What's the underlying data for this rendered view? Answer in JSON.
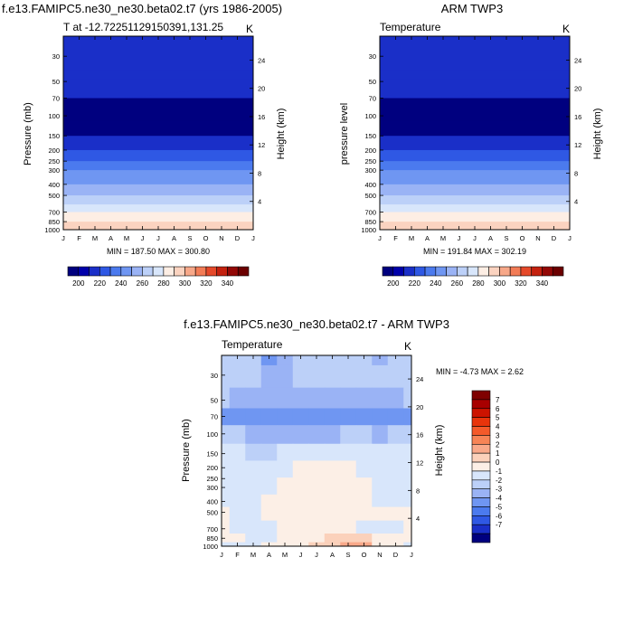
{
  "chart_data": [
    {
      "type": "heatmap",
      "title": "f.e13.FAMIPC5.ne30_ne30.beta02.t7 (yrs 1986-2005)",
      "subtitle_left": "T at -12.72251129150391,131.25",
      "subtitle_right": "K",
      "ylabel": "Pressure (mb)",
      "ylabel_right": "Height (km)",
      "months": [
        "J",
        "F",
        "M",
        "A",
        "M",
        "J",
        "J",
        "A",
        "S",
        "O",
        "N",
        "D",
        "J"
      ],
      "pressure_ticks": [
        30,
        50,
        70,
        100,
        150,
        200,
        250,
        300,
        400,
        500,
        700,
        850,
        1000
      ],
      "height_ticks": [
        24,
        20,
        16,
        12,
        8,
        4
      ],
      "ylim": [
        1000,
        20
      ],
      "stats": "MIN = 187.50 MAX = 300.80",
      "min": 187.5,
      "max": 300.8,
      "bands": [
        {
          "p": 20,
          "T": 212
        },
        {
          "p": 40,
          "T": 212
        },
        {
          "p": 70,
          "T": 196
        },
        {
          "p": 110,
          "T": 192
        },
        {
          "p": 150,
          "T": 210
        },
        {
          "p": 200,
          "T": 222
        },
        {
          "p": 250,
          "T": 232
        },
        {
          "p": 300,
          "T": 242
        },
        {
          "p": 400,
          "T": 256
        },
        {
          "p": 500,
          "T": 268
        },
        {
          "p": 600,
          "T": 275
        },
        {
          "p": 700,
          "T": 283
        },
        {
          "p": 850,
          "T": 292
        },
        {
          "p": 1000,
          "T": 298
        }
      ]
    },
    {
      "type": "heatmap",
      "title": "ARM TWP3",
      "subtitle_left": "Temperature",
      "subtitle_right": "K",
      "ylabel": "pressure level",
      "ylabel_right": "Height (km)",
      "months": [
        "J",
        "F",
        "M",
        "A",
        "M",
        "J",
        "J",
        "A",
        "S",
        "O",
        "N",
        "D",
        "J"
      ],
      "pressure_ticks": [
        30,
        50,
        70,
        100,
        150,
        200,
        250,
        300,
        400,
        500,
        700,
        850,
        1000
      ],
      "height_ticks": [
        24,
        20,
        16,
        12,
        8,
        4
      ],
      "ylim": [
        1000,
        20
      ],
      "stats": "MIN = 191.84 MAX = 302.19",
      "min": 191.84,
      "max": 302.19,
      "bands": [
        {
          "p": 20,
          "T": 214
        },
        {
          "p": 40,
          "T": 212
        },
        {
          "p": 70,
          "T": 199
        },
        {
          "p": 110,
          "T": 194
        },
        {
          "p": 150,
          "T": 210
        },
        {
          "p": 200,
          "T": 222
        },
        {
          "p": 250,
          "T": 233
        },
        {
          "p": 300,
          "T": 243
        },
        {
          "p": 400,
          "T": 257
        },
        {
          "p": 500,
          "T": 269
        },
        {
          "p": 600,
          "T": 276
        },
        {
          "p": 700,
          "T": 284
        },
        {
          "p": 850,
          "T": 293
        },
        {
          "p": 1000,
          "T": 300
        }
      ]
    },
    {
      "type": "heatmap",
      "title": "f.e13.FAMIPC5.ne30_ne30.beta02.t7 - ARM TWP3",
      "subtitle_left": "Temperature",
      "subtitle_right": "K",
      "ylabel": "Pressure (mb)",
      "ylabel_right": "Height (km)",
      "months": [
        "J",
        "F",
        "M",
        "A",
        "M",
        "J",
        "J",
        "A",
        "S",
        "O",
        "N",
        "D",
        "J"
      ],
      "pressure_ticks": [
        30,
        50,
        70,
        100,
        150,
        200,
        250,
        300,
        400,
        500,
        700,
        850,
        1000
      ],
      "height_ticks": [
        24,
        20,
        16,
        12,
        8,
        4
      ],
      "ylim": [
        1000,
        20
      ],
      "stats": "MIN =  -4.73 MAX =   2.62",
      "min": -4.73,
      "max": 2.62,
      "grid_pressures": [
        20,
        30,
        50,
        70,
        100,
        150,
        200,
        300,
        400,
        500,
        700,
        850,
        1000
      ],
      "grid_values": [
        [
          -2,
          -2,
          -2.5,
          -4,
          -3,
          -2.5,
          -2,
          -2,
          -2,
          -2,
          -3,
          -2,
          -2
        ],
        [
          -2,
          -2,
          -2.5,
          -3.5,
          -3,
          -2.5,
          -2,
          -2,
          -2,
          -2,
          -2.5,
          -2,
          -2
        ],
        [
          -2.5,
          -3,
          -3,
          -3.5,
          -3,
          -3,
          -3,
          -3,
          -3,
          -3,
          -3,
          -3,
          -2.5
        ],
        [
          -4.5,
          -4,
          -4,
          -4,
          -4.5,
          -4,
          -4,
          -4,
          -4,
          -4,
          -4,
          -4.5,
          -4.5
        ],
        [
          -2.5,
          -2.5,
          -3,
          -3,
          -3,
          -3,
          -3,
          -3,
          -2.5,
          -2.5,
          -3,
          -2.5,
          -2.5
        ],
        [
          -1.5,
          -1.5,
          -2,
          -2,
          -1.5,
          -1,
          -1,
          -1,
          -1,
          -1.5,
          -1.5,
          -1.5,
          -1.5
        ],
        [
          -1.5,
          -1.5,
          -1.5,
          -1.5,
          -1,
          -0.5,
          -0.5,
          -0.5,
          -0.5,
          -1,
          -1.5,
          -1.5,
          -1.5
        ],
        [
          -1,
          -1.5,
          -1.5,
          -1,
          -0.5,
          -0.5,
          -0.5,
          -0.5,
          -0.5,
          -0.5,
          -1,
          -1,
          -1
        ],
        [
          -1,
          -1,
          -1,
          -0.5,
          -0.5,
          -0.5,
          -0.5,
          -0.5,
          -0.5,
          -0.5,
          -1,
          -1,
          -1
        ],
        [
          -0.5,
          -1,
          -1,
          -0.5,
          -0.5,
          -0.5,
          -0.5,
          -0.5,
          -0.5,
          -0.5,
          -0.5,
          -0.5,
          -0.5
        ],
        [
          -0.5,
          -1,
          -1.5,
          -1,
          -0.5,
          -0.5,
          -0.5,
          -0.5,
          -0.5,
          -1,
          -1,
          -1,
          -0.5
        ],
        [
          -0.5,
          -0.5,
          -1,
          -1,
          -0.5,
          -0.5,
          -0.5,
          0.5,
          0.5,
          0.5,
          -0.5,
          -0.5,
          -0.5
        ],
        [
          -1,
          -1,
          -1,
          -0.5,
          -0.5,
          -0.5,
          0.5,
          0.5,
          1.5,
          1.5,
          -0.5,
          -0.5,
          -1
        ]
      ]
    }
  ],
  "colorbar_top": {
    "labels": [
      "200",
      "220",
      "240",
      "260",
      "280",
      "300",
      "320",
      "340"
    ],
    "levels": [
      190,
      200,
      210,
      220,
      230,
      240,
      250,
      260,
      270,
      280,
      290,
      300,
      310,
      320,
      330,
      340,
      350
    ],
    "colors": [
      "#00007f",
      "#0000aa",
      "#1a2fc8",
      "#2f58e4",
      "#4b7aee",
      "#6f96f2",
      "#9ab3f5",
      "#bcd0f8",
      "#d8e6fb",
      "#fdeee4",
      "#fbd3c0",
      "#f7a889",
      "#f27c56",
      "#e5492a",
      "#c4210f",
      "#930806",
      "#6b0000"
    ]
  },
  "colorbar_diff": {
    "labels": [
      "7",
      "6",
      "5",
      "4",
      "3",
      "2",
      "1",
      "0",
      "-1",
      "-2",
      "-3",
      "-4",
      "-5",
      "-6",
      "-7"
    ],
    "colors": [
      "#7f0000",
      "#a80000",
      "#cc1300",
      "#e8340b",
      "#f45a2a",
      "#f78456",
      "#f9a98a",
      "#fbd1bb",
      "#fcefe6",
      "#d8e6fb",
      "#bcd0f8",
      "#9ab3f5",
      "#6f96f2",
      "#4b7aee",
      "#2f58e4",
      "#1a2fc8",
      "#00007f"
    ]
  }
}
